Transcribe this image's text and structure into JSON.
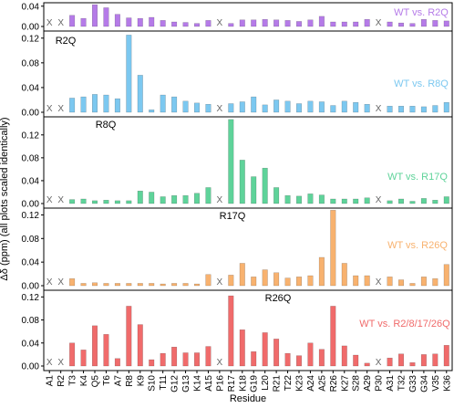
{
  "figure": {
    "ylabel": "Δδ (ppm) (all plots scaled identically)",
    "xlabel": "Residue"
  },
  "chart_data": [
    {
      "type": "bar",
      "series_label": "WT vs. R2Q",
      "mutation_label": "",
      "color": "#b57be8",
      "ylim": [
        0,
        0.045
      ],
      "yticks": [
        0.0,
        0.04
      ],
      "categories": [
        "A1",
        "R2",
        "T3",
        "K4",
        "Q5",
        "T6",
        "A7",
        "R8",
        "K9",
        "S10",
        "T11",
        "G12",
        "G13",
        "K14",
        "A15",
        "P16",
        "R17",
        "K18",
        "G19",
        "L20",
        "R21",
        "T22",
        "K23",
        "A24",
        "A25",
        "R26",
        "K27",
        "S28",
        "A29",
        "P30",
        "A31",
        "T32",
        "G33",
        "G34",
        "V35",
        "K36"
      ],
      "values": [
        null,
        null,
        0.022,
        0.016,
        0.043,
        0.037,
        0.024,
        0.017,
        0.016,
        0.018,
        0.012,
        0.009,
        0.008,
        0.006,
        0.012,
        null,
        0.006,
        0.013,
        0.013,
        0.014,
        0.013,
        0.012,
        0.01,
        0.013,
        0.02,
        0.009,
        0.009,
        0.009,
        0.014,
        null,
        0.009,
        0.007,
        0.006,
        0.014,
        0.012,
        0.011
      ],
      "missing_marker": "X"
    },
    {
      "type": "bar",
      "series_label": "WT vs. R8Q",
      "mutation_label": "R2Q",
      "color": "#7cc8f0",
      "ylim": [
        0,
        0.13
      ],
      "yticks": [
        0.0,
        0.04,
        0.08,
        0.12
      ],
      "categories": [
        "A1",
        "R2",
        "T3",
        "K4",
        "Q5",
        "T6",
        "A7",
        "R8",
        "K9",
        "S10",
        "T11",
        "G12",
        "G13",
        "K14",
        "A15",
        "P16",
        "R17",
        "K18",
        "G19",
        "L20",
        "R21",
        "T22",
        "K23",
        "A24",
        "A25",
        "R26",
        "K27",
        "S28",
        "A29",
        "P30",
        "A31",
        "T32",
        "G33",
        "G34",
        "V35",
        "K36"
      ],
      "values": [
        null,
        null,
        0.023,
        0.025,
        0.029,
        0.028,
        0.022,
        0.125,
        0.06,
        0.004,
        0.028,
        0.025,
        0.018,
        0.015,
        0.013,
        null,
        0.014,
        0.017,
        0.025,
        0.012,
        0.02,
        0.018,
        0.014,
        0.018,
        0.017,
        0.011,
        0.018,
        0.016,
        0.013,
        null,
        0.01,
        0.01,
        0.01,
        0.009,
        0.011,
        0.016
      ],
      "missing_marker": "X"
    },
    {
      "type": "bar",
      "series_label": "WT vs. R17Q",
      "mutation_label": "R8Q",
      "color": "#5fd39a",
      "ylim": [
        0,
        0.15
      ],
      "yticks": [
        0.0,
        0.04,
        0.08,
        0.12
      ],
      "categories": [
        "A1",
        "R2",
        "T3",
        "K4",
        "Q5",
        "T6",
        "A7",
        "R8",
        "K9",
        "S10",
        "T11",
        "G12",
        "G13",
        "K14",
        "A15",
        "P16",
        "R17",
        "K18",
        "G19",
        "L20",
        "R21",
        "T22",
        "K23",
        "A24",
        "A25",
        "R26",
        "K27",
        "S28",
        "A29",
        "P30",
        "A31",
        "T32",
        "G33",
        "G34",
        "V35",
        "K36"
      ],
      "values": [
        null,
        null,
        0.007,
        0.008,
        0.005,
        0.006,
        0.005,
        0.005,
        0.022,
        0.02,
        0.012,
        0.014,
        0.014,
        0.018,
        0.028,
        null,
        0.147,
        0.076,
        0.047,
        0.062,
        0.028,
        0.014,
        0.013,
        0.017,
        0.015,
        0.008,
        0.008,
        0.008,
        0.01,
        null,
        0.005,
        0.008,
        0.004,
        0.009,
        0.006,
        0.012
      ],
      "missing_marker": "X"
    },
    {
      "type": "bar",
      "series_label": "WT vs. R26Q",
      "mutation_label": "R17Q",
      "color": "#f8b26f",
      "ylim": [
        0,
        0.13
      ],
      "yticks": [
        0.0,
        0.04,
        0.08,
        0.12
      ],
      "categories": [
        "A1",
        "R2",
        "T3",
        "K4",
        "Q5",
        "T6",
        "A7",
        "R8",
        "K9",
        "S10",
        "T11",
        "G12",
        "G13",
        "K14",
        "A15",
        "P16",
        "R17",
        "K18",
        "G19",
        "L20",
        "R21",
        "T22",
        "K23",
        "A24",
        "A25",
        "R26",
        "K27",
        "S28",
        "A29",
        "P30",
        "A31",
        "T32",
        "G33",
        "G34",
        "V35",
        "K36"
      ],
      "values": [
        null,
        null,
        0.012,
        0.004,
        0.005,
        0.004,
        0.004,
        0.004,
        0.004,
        0.004,
        0.003,
        0.004,
        0.004,
        0.003,
        0.019,
        null,
        0.018,
        0.038,
        0.015,
        0.027,
        0.022,
        0.013,
        0.015,
        0.017,
        0.048,
        0.128,
        0.038,
        0.017,
        0.017,
        null,
        0.015,
        0.01,
        0.004,
        0.015,
        0.012,
        0.036
      ],
      "missing_marker": "X"
    },
    {
      "type": "bar",
      "series_label": "WT vs. R2/8/17/26Q",
      "mutation_label": "R26Q",
      "color": "#f06b6b",
      "ylim": [
        0,
        0.13
      ],
      "yticks": [
        0.0,
        0.04,
        0.08,
        0.12
      ],
      "categories": [
        "A1",
        "R2",
        "T3",
        "K4",
        "Q5",
        "T6",
        "A7",
        "R8",
        "K9",
        "S10",
        "T11",
        "G12",
        "G13",
        "K14",
        "A15",
        "P16",
        "R17",
        "K18",
        "G19",
        "L20",
        "R21",
        "T22",
        "K23",
        "A24",
        "A25",
        "R26",
        "K27",
        "S28",
        "A29",
        "P30",
        "A31",
        "T32",
        "G33",
        "G34",
        "V35",
        "K36"
      ],
      "values": [
        null,
        null,
        0.04,
        0.028,
        0.07,
        0.055,
        0.013,
        0.104,
        0.072,
        0.011,
        0.022,
        0.033,
        0.023,
        0.023,
        0.034,
        null,
        0.122,
        0.063,
        0.025,
        0.058,
        0.047,
        0.022,
        0.018,
        0.04,
        0.029,
        0.104,
        0.035,
        0.019,
        0.005,
        null,
        0.014,
        0.021,
        0.006,
        0.02,
        0.021,
        0.036
      ],
      "missing_marker": "X"
    }
  ]
}
